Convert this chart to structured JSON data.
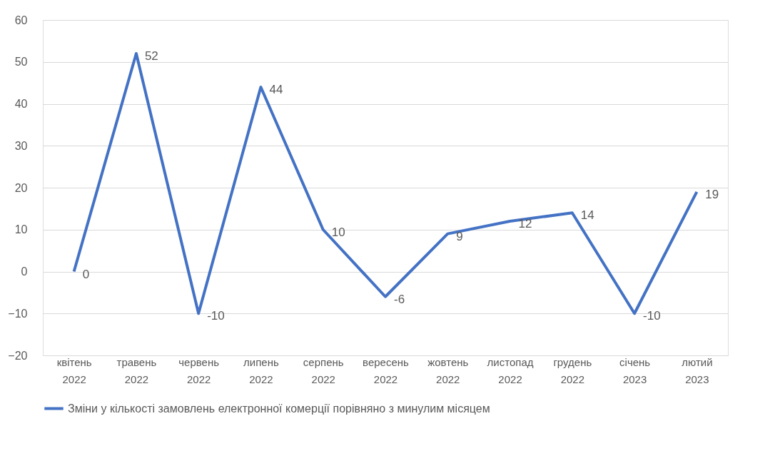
{
  "chart_data": {
    "type": "line",
    "categories": [
      "квітень 2022",
      "травень 2022",
      "червень 2022",
      "липень 2022",
      "серпень 2022",
      "вересень 2022",
      "жовтень 2022",
      "листопад 2022",
      "грудень 2022",
      "січень 2023",
      "лютий 2023"
    ],
    "series": [
      {
        "name": "Зміни у кількості замовлень електронної комерції порівняно з минулим місяцем",
        "color": "#4472c4",
        "values": [
          0,
          52,
          -10,
          44,
          10,
          -6,
          9,
          12,
          14,
          -10,
          19
        ]
      }
    ],
    "ylim": [
      -20,
      60
    ],
    "yticks": [
      -20,
      -10,
      0,
      10,
      20,
      30,
      40,
      50,
      60
    ],
    "grid": "y",
    "legend": "bottom",
    "data_labels": true,
    "marker": "none",
    "line_style": "solid"
  }
}
